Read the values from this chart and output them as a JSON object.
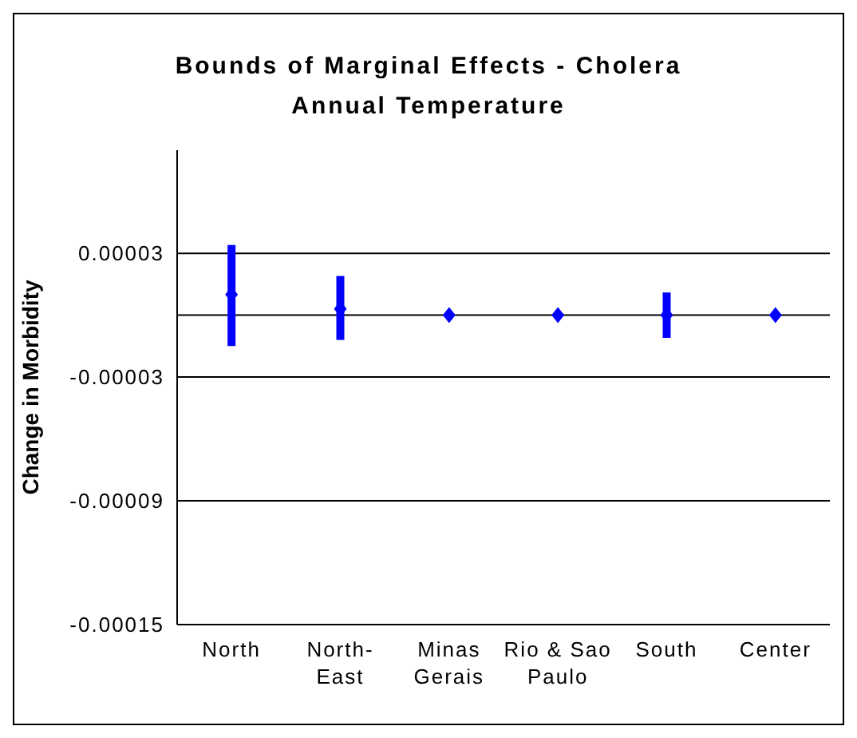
{
  "chart_data": {
    "type": "scatter",
    "title": "Bounds of Marginal Effects - Cholera",
    "subtitle": "Annual Temperature",
    "ylabel": "Change in Morbidity",
    "categories": [
      "North",
      "North-East",
      "Minas Gerais",
      "Rio & Sao Paulo",
      "South",
      "Center"
    ],
    "series": [
      {
        "color": "#0000ff",
        "values": [
          1e-05,
          3e-06,
          0,
          0,
          0,
          0
        ],
        "errors": [
          [
            -1.5e-05,
            3.4e-05
          ],
          [
            -1.2e-05,
            1.9e-05
          ],
          null,
          null,
          [
            -1.1e-05,
            1.1e-05
          ],
          null
        ]
      }
    ],
    "ylim": [
      -0.00015,
      8e-05
    ],
    "yticks": [
      {
        "value": 3e-05,
        "label": "0.00003"
      },
      {
        "value": -3e-05,
        "label": "-0.00003"
      },
      {
        "value": -9e-05,
        "label": "-0.00009"
      },
      {
        "value": -0.00015,
        "label": "-0.00015"
      }
    ],
    "grid": "y",
    "marker": "diamond",
    "ref_lines": [
      {
        "axis": "y",
        "value": 0
      }
    ]
  }
}
